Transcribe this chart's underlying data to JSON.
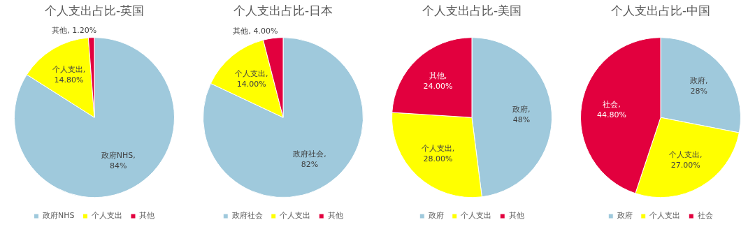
{
  "chart_data": [
    {
      "type": "pie",
      "title": "个人支出占比-英国",
      "categories": [
        "政府NHS",
        "个人支出",
        "其他"
      ],
      "values": [
        84,
        14.8,
        1.2
      ],
      "value_labels": [
        "政府NHS, 84%",
        "个人支出, 14.80%",
        "其他, 1.20%"
      ],
      "colors": [
        "#9fc9dc",
        "#ffff00",
        "#e2003e"
      ],
      "legend": "bottom"
    },
    {
      "type": "pie",
      "title": "个人支出占比-日本",
      "categories": [
        "政府社会",
        "个人支出",
        "其他"
      ],
      "values": [
        82,
        14,
        4
      ],
      "value_labels": [
        "政府社会, 82%",
        "个人支出, 14.00%",
        "其他, 4.00%"
      ],
      "colors": [
        "#9fc9dc",
        "#ffff00",
        "#e2003e"
      ],
      "legend": "bottom"
    },
    {
      "type": "pie",
      "title": "个人支出占比-美国",
      "categories": [
        "政府",
        "个人支出",
        "其他"
      ],
      "values": [
        48,
        28,
        24
      ],
      "value_labels": [
        "政府, 48%",
        "个人支出, 28.00%",
        "其他, 24.00%"
      ],
      "colors": [
        "#9fc9dc",
        "#ffff00",
        "#e2003e"
      ],
      "legend": "bottom"
    },
    {
      "type": "pie",
      "title": "个人支出占比-中国",
      "categories": [
        "政府",
        "个人支出",
        "社会"
      ],
      "values": [
        28,
        27,
        44.8
      ],
      "value_labels": [
        "政府, 28%",
        "个人支出, 27.00%",
        "社会, 44.80%"
      ],
      "colors": [
        "#9fc9dc",
        "#ffff00",
        "#e2003e"
      ],
      "legend": "bottom"
    }
  ]
}
